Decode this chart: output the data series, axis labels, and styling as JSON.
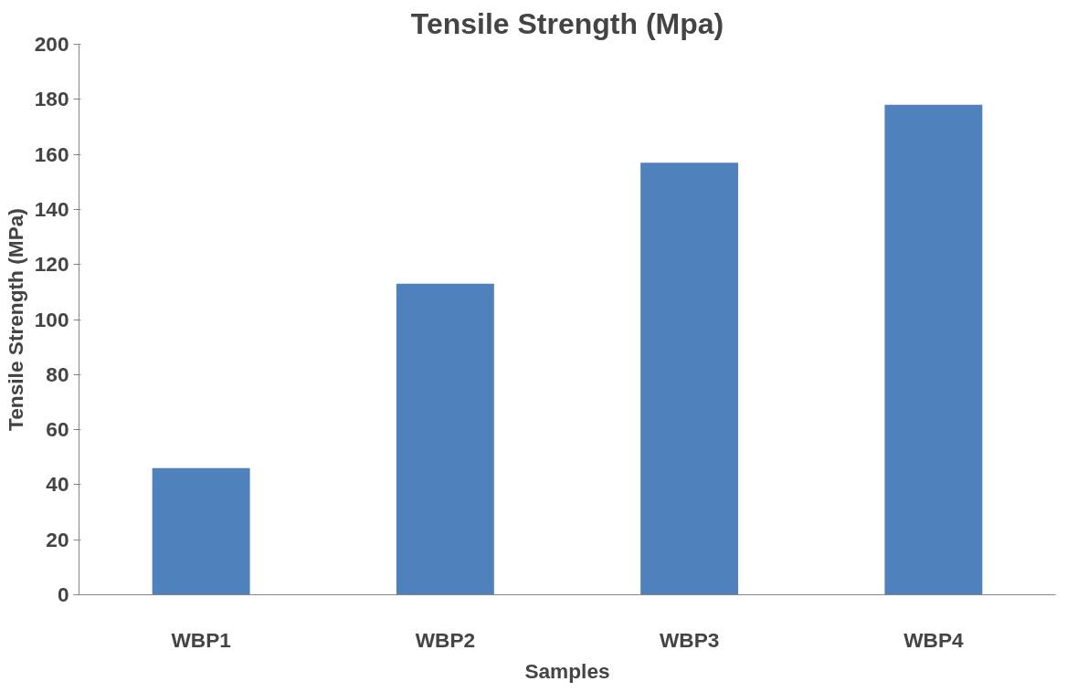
{
  "chart_data": {
    "type": "bar",
    "title": "Tensile Strength (Mpa)",
    "xlabel": "Samples",
    "ylabel": "Tensile Strength (MPa)",
    "categories": [
      "WBP1",
      "WBP2",
      "WBP3",
      "WBP4"
    ],
    "values": [
      46,
      113,
      157,
      178
    ],
    "color": "#4f81bd",
    "ylim": [
      0,
      200
    ],
    "yticks": [
      0,
      20,
      40,
      60,
      80,
      100,
      120,
      140,
      160,
      180,
      200
    ],
    "grid": false
  }
}
